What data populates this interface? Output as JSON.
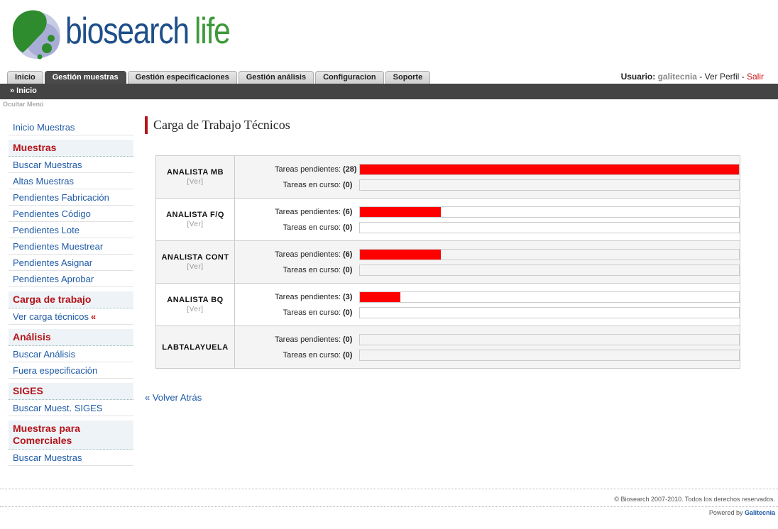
{
  "logo": {
    "word1": "biosearch",
    "word2": "life"
  },
  "tabs": [
    "Inicio",
    "Gestión muestras",
    "Gestión especificaciones",
    "Gestión análisis",
    "Configuracion",
    "Soporte"
  ],
  "active_tab_index": 1,
  "user": {
    "label": "Usuario:",
    "name": "galitecnia",
    "sep1": " - ",
    "profile": "Ver Perfil",
    "sep2": " - ",
    "logout": "Salir"
  },
  "breadcrumb": "» Inicio",
  "hide_menu": "Ocultar Menú",
  "sidebar": {
    "top_link": "Inicio Muestras",
    "sections": [
      {
        "title": "Muestras",
        "items": [
          "Buscar Muestras",
          "Altas Muestras",
          "Pendientes Fabricación",
          "Pendientes Código",
          "Pendientes Lote",
          "Pendientes Muestrear",
          "Pendientes Asignar",
          "Pendientes Aprobar"
        ]
      },
      {
        "title": "Carga de trabajo",
        "items": [
          "Ver carga técnicos"
        ]
      },
      {
        "title": "Análisis",
        "items": [
          "Buscar Análisis",
          "Fuera especificación"
        ]
      },
      {
        "title": "SIGES",
        "items": [
          "Buscar Muest. SIGES"
        ]
      },
      {
        "title": "Muestras para Comerciales",
        "items": [
          "Buscar Muestras"
        ]
      }
    ],
    "current_marker": "«"
  },
  "page_title": "Carga de Trabajo Técnicos",
  "workload": {
    "pending_label": "Tareas pendientes:",
    "inprogress_label": "Tareas en curso:",
    "view_label": "[Ver]",
    "max_pending": 28,
    "analysts": [
      {
        "name": "ANALISTA MB",
        "pending": 28,
        "in_progress": 0,
        "has_view": true
      },
      {
        "name": "ANALISTA F/Q",
        "pending": 6,
        "in_progress": 0,
        "has_view": true
      },
      {
        "name": "ANALISTA CONT",
        "pending": 6,
        "in_progress": 0,
        "has_view": true
      },
      {
        "name": "ANALISTA BQ",
        "pending": 3,
        "in_progress": 0,
        "has_view": true
      },
      {
        "name": "LABTALAYUELA",
        "pending": 0,
        "in_progress": 0,
        "has_view": false
      }
    ]
  },
  "back_link": "« Volver Atrás",
  "footer": {
    "copyright": "© Biosearch 2007-2010. Todos los derechos reservados.",
    "powered_prefix": "Powered by",
    "powered_brand": "Galitecnia"
  },
  "colors": {
    "accent_red": "#b3141a",
    "bar_red": "#ff0000",
    "link_blue": "#1f5aa6",
    "nav_dark": "#444444"
  }
}
